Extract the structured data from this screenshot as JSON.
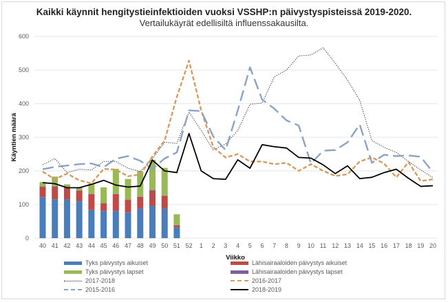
{
  "chart_data": {
    "type": "bar",
    "title": "Kaikki käynnit hengitystieinfektioiden vuoksi VSSHP:n päivystyspisteissä 2019-2020.",
    "subtitle": "Vertailukäyrät edellisiltä influenssakausilta.",
    "xlabel": "Viikko",
    "ylabel": "Käyntien määrä",
    "ylim": [
      0,
      600
    ],
    "yticks": [
      0,
      100,
      200,
      300,
      400,
      500,
      600
    ],
    "grid": true,
    "legend_position": "bottom",
    "categories": [
      "40",
      "41",
      "42",
      "43",
      "44",
      "45",
      "46",
      "47",
      "48",
      "49",
      "50",
      "51",
      "52",
      "1",
      "2",
      "3",
      "4",
      "5",
      "6",
      "7",
      "8",
      "9",
      "10",
      "11",
      "12",
      "13",
      "14",
      "15",
      "16",
      "17",
      "18",
      "19",
      "20"
    ],
    "bar_series": [
      {
        "name": "Tyks päivystys aikuiset",
        "color": "#4a7ebb",
        "values": [
          122,
          116,
          115,
          110,
          84,
          81,
          81,
          77,
          88,
          96,
          88,
          32,
          null,
          null,
          null,
          null,
          null,
          null,
          null,
          null,
          null,
          null,
          null,
          null,
          null,
          null,
          null,
          null,
          null,
          null,
          null,
          null,
          null
        ]
      },
      {
        "name": "Lähisairaaloiden päivystys aikuiset",
        "color": "#be4b48",
        "values": [
          30,
          36,
          34,
          31,
          47,
          22,
          50,
          37,
          35,
          45,
          38,
          6,
          null,
          null,
          null,
          null,
          null,
          null,
          null,
          null,
          null,
          null,
          null,
          null,
          null,
          null,
          null,
          null,
          null,
          null,
          null,
          null,
          null
        ]
      },
      {
        "name": "Lähisairaaloiden päivystys lapset",
        "color": "#7d60a0",
        "values": [
          1,
          2,
          1,
          1,
          1,
          1,
          1,
          1,
          1,
          2,
          1,
          1,
          null,
          null,
          null,
          null,
          null,
          null,
          null,
          null,
          null,
          null,
          null,
          null,
          null,
          null,
          null,
          null,
          null,
          null,
          null,
          null,
          null
        ]
      },
      {
        "name": "Tyks päivystys lapset",
        "color": "#98b954",
        "values": [
          14,
          29,
          10,
          9,
          30,
          47,
          74,
          61,
          75,
          90,
          82,
          32,
          null,
          null,
          null,
          null,
          null,
          null,
          null,
          null,
          null,
          null,
          null,
          null,
          null,
          null,
          null,
          null,
          null,
          null,
          null,
          null,
          null
        ]
      }
    ],
    "line_series": [
      {
        "name": "2017-2018",
        "color": "#222222",
        "style": "dotted",
        "values": [
          218,
          237,
          195,
          205,
          203,
          228,
          228,
          208,
          198,
          236,
          285,
          282,
          375,
          320,
          262,
          280,
          320,
          398,
          402,
          480,
          500,
          542,
          545,
          566,
          520,
          470,
          410,
          290,
          270,
          255,
          228,
          203,
          180
        ]
      },
      {
        "name": "2016-2017",
        "color": "#d99a5e",
        "style": "dashed",
        "values": [
          198,
          175,
          192,
          172,
          163,
          206,
          204,
          184,
          189,
          243,
          290,
          420,
          528,
          380,
          270,
          240,
          250,
          228,
          228,
          220,
          224,
          200,
          220,
          200,
          185,
          190,
          228,
          240,
          222,
          181,
          226,
          170,
          175
        ]
      },
      {
        "name": "2015-2016",
        "color": "#8aa2c4",
        "style": "longdash",
        "values": [
          205,
          212,
          216,
          220,
          222,
          211,
          236,
          244,
          230,
          206,
          237,
          255,
          380,
          378,
          302,
          262,
          380,
          508,
          412,
          385,
          350,
          335,
          222,
          260,
          262,
          285,
          338,
          224,
          248,
          244,
          246,
          242,
          196
        ]
      },
      {
        "name": "2018-2019",
        "color": "#000000",
        "style": "solid",
        "values": [
          165,
          162,
          150,
          150,
          160,
          172,
          158,
          152,
          155,
          232,
          200,
          195,
          311,
          200,
          177,
          175,
          233,
          208,
          278,
          272,
          268,
          240,
          238,
          218,
          192,
          215,
          177,
          181,
          195,
          205,
          178,
          154,
          156
        ]
      }
    ]
  },
  "legend": {
    "items": [
      {
        "label": "Tyks päivystys aikuiset",
        "kind": "bar",
        "color": "#4a7ebb"
      },
      {
        "label": "Lähisairaaloiden päivystys aikuiset",
        "kind": "bar",
        "color": "#be4b48"
      },
      {
        "label": "Tyks päivystys lapset",
        "kind": "bar",
        "color": "#98b954"
      },
      {
        "label": "Lähisairaaloiden päivystys lapset",
        "kind": "bar",
        "color": "#7d60a0"
      },
      {
        "label": "2017-2018",
        "kind": "dotted",
        "color": "#222222"
      },
      {
        "label": "2016-2017",
        "kind": "dashed",
        "color": "#d99a5e"
      },
      {
        "label": "2015-2016",
        "kind": "longdash",
        "color": "#8aa2c4"
      },
      {
        "label": "2018-2019",
        "kind": "solid",
        "color": "#000000"
      }
    ]
  }
}
